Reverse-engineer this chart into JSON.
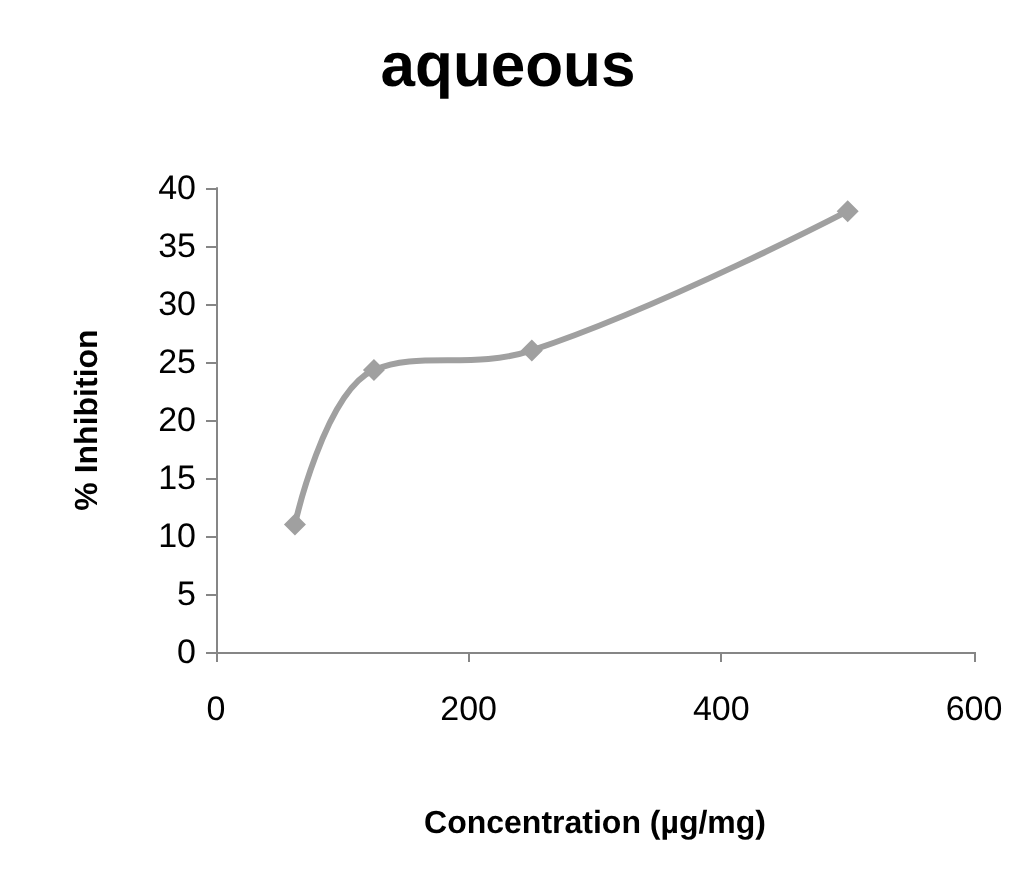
{
  "chart_data": {
    "type": "line",
    "title": "aqueous",
    "xlabel": "Concentration (µg/mg)",
    "ylabel": "% Inhibition",
    "x": [
      62.5,
      125,
      250,
      500
    ],
    "series": [
      {
        "color": "#a0a0a0",
        "values": [
          11,
          24.3,
          26,
          38
        ]
      }
    ],
    "xlim": [
      0,
      600
    ],
    "xticks": [
      0,
      200,
      400,
      600
    ],
    "ylim": [
      0,
      40
    ],
    "yticks": [
      0,
      5,
      10,
      15,
      20,
      25,
      30,
      35,
      40
    ],
    "marker": "diamond"
  }
}
